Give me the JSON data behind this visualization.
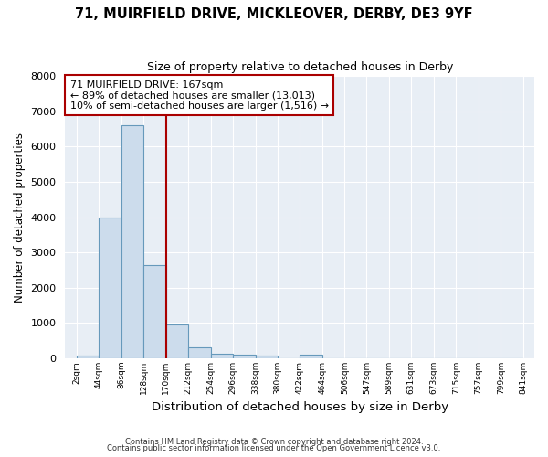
{
  "title1": "71, MUIRFIELD DRIVE, MICKLEOVER, DERBY, DE3 9YF",
  "title2": "Size of property relative to detached houses in Derby",
  "xlabel": "Distribution of detached houses by size in Derby",
  "ylabel": "Number of detached properties",
  "annotation_line1": "71 MUIRFIELD DRIVE: 167sqm",
  "annotation_line2": "← 89% of detached houses are smaller (13,013)",
  "annotation_line3": "10% of semi-detached houses are larger (1,516) →",
  "bin_edges": [
    2,
    44,
    86,
    128,
    170,
    212,
    254,
    296,
    338,
    380,
    422,
    464,
    506,
    547,
    589,
    631,
    673,
    715,
    757,
    799,
    841
  ],
  "bin_labels": [
    "2sqm",
    "44sqm",
    "86sqm",
    "128sqm",
    "170sqm",
    "212sqm",
    "254sqm",
    "296sqm",
    "338sqm",
    "380sqm",
    "422sqm",
    "464sqm",
    "506sqm",
    "547sqm",
    "589sqm",
    "631sqm",
    "673sqm",
    "715sqm",
    "757sqm",
    "799sqm",
    "841sqm"
  ],
  "bar_heights": [
    70,
    3980,
    6600,
    2630,
    950,
    310,
    130,
    110,
    90,
    0,
    100,
    0,
    0,
    0,
    0,
    0,
    0,
    0,
    0,
    0
  ],
  "bar_color": "#ccdcec",
  "bar_edge_color": "#6699bb",
  "vline_color": "#aa0000",
  "vline_x": 170,
  "ylim": [
    0,
    8000
  ],
  "yticks": [
    0,
    1000,
    2000,
    3000,
    4000,
    5000,
    6000,
    7000,
    8000
  ],
  "footer1": "Contains HM Land Registry data © Crown copyright and database right 2024.",
  "footer2": "Contains public sector information licensed under the Open Government Licence v3.0.",
  "bg_color": "#ffffff",
  "plot_bg_color": "#e8eef5",
  "grid_color": "#ffffff"
}
